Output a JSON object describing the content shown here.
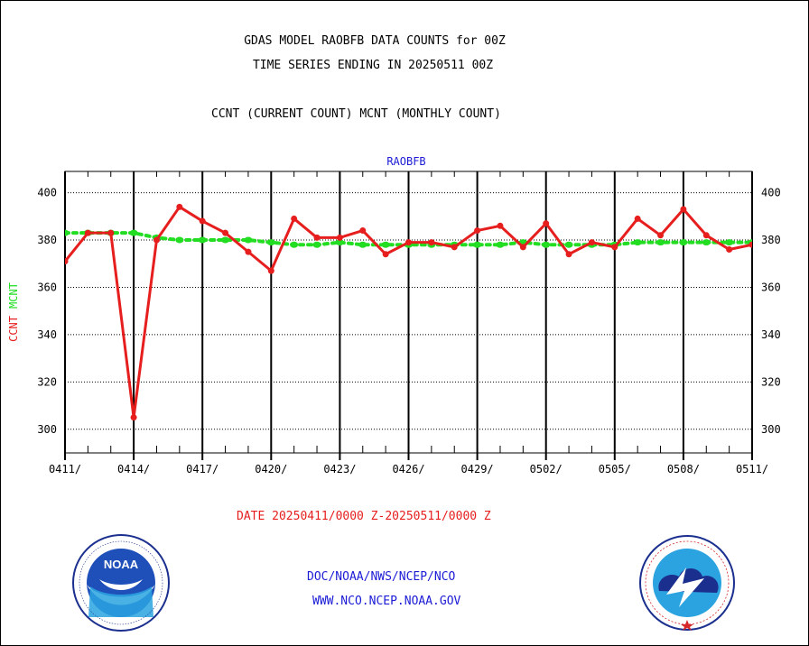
{
  "header": {
    "title_line1": "GDAS MODEL RAOBFB DATA COUNTS for 00Z",
    "title_line2": "TIME SERIES ENDING IN 20250511 00Z",
    "subtitle": "CCNT (CURRENT COUNT) MCNT (MONTHLY COUNT)"
  },
  "footer": {
    "date_range": "DATE 20250411/0000 Z-20250511/0000 Z",
    "link_org": "DOC/NOAA/NWS/NCEP/NCO",
    "link_site": "WWW.NCO.NCEP.NOAA.GOV"
  },
  "logos": {
    "noaa": {
      "label": "NOAA",
      "ring_text": "NATIONAL OCEANIC AND ATMOSPHERIC ADMINISTRATION · U.S. DEPARTMENT OF COMMERCE"
    },
    "nws": {
      "ring_text": "NATIONAL WEATHER SERVICE"
    }
  },
  "colors": {
    "ccnt": "#e61e1e",
    "mcnt": "#22dd22",
    "axis": "#000000",
    "text_blue": "#1b1bd6"
  },
  "chart_data": {
    "type": "line",
    "panel_label": "RAOBFB",
    "ylabel_parts": [
      "CCNT",
      "MCNT"
    ],
    "x": [
      "0411",
      "0412",
      "0413",
      "0414",
      "0415",
      "0416",
      "0417",
      "0418",
      "0419",
      "0420",
      "0421",
      "0422",
      "0423",
      "0424",
      "0425",
      "0426",
      "0427",
      "0428",
      "0429",
      "0430",
      "0501",
      "0502",
      "0503",
      "0504",
      "0505",
      "0506",
      "0507",
      "0508",
      "0509",
      "0510",
      "0511"
    ],
    "x_tick_labels": [
      "0411/",
      "0414/",
      "0417/",
      "0420/",
      "0423/",
      "0426/",
      "0429/",
      "0502/",
      "0505/",
      "0508/",
      "0511/"
    ],
    "ylim": [
      290,
      409
    ],
    "yticks": [
      300,
      320,
      340,
      360,
      380,
      400
    ],
    "grid": true,
    "series": [
      {
        "name": "CCNT",
        "values": [
          371,
          383,
          383,
          305,
          380,
          394,
          388,
          383,
          375,
          367,
          389,
          381,
          381,
          384,
          374,
          379,
          379,
          377,
          384,
          386,
          377,
          387,
          374,
          379,
          377,
          389,
          382,
          393,
          382,
          376,
          378
        ]
      },
      {
        "name": "MCNT",
        "values": [
          383,
          383,
          383,
          383,
          381,
          380,
          380,
          380,
          380,
          379,
          378,
          378,
          379,
          378,
          378,
          378,
          378,
          378,
          378,
          378,
          379,
          378,
          378,
          378,
          378,
          379,
          379,
          379,
          379,
          379,
          379
        ]
      }
    ]
  }
}
